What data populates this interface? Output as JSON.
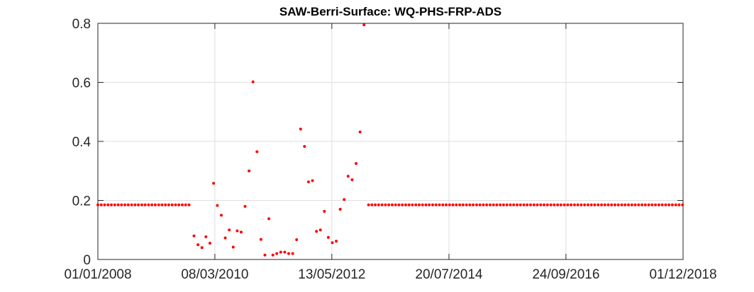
{
  "chart_data": {
    "type": "scatter",
    "title": "SAW-Berri-Surface: WQ-PHS-FRP-ADS",
    "xlabel": "",
    "ylabel": "",
    "xlim": [
      "2008-01-01",
      "2018-12-01"
    ],
    "ylim": [
      0,
      0.8
    ],
    "grid": true,
    "x_ticks": [
      "01/01/2008",
      "08/03/2010",
      "13/05/2012",
      "20/07/2014",
      "24/09/2016",
      "01/12/2018"
    ],
    "y_ticks": [
      "0",
      "0.2",
      "0.4",
      "0.6",
      "0.8"
    ],
    "marker_color": "#ff0000",
    "series": [
      {
        "points": [
          {
            "x": "2008-01-01",
            "y": 0.185
          },
          {
            "x": "2008-01-24",
            "y": 0.185
          },
          {
            "x": "2008-02-16",
            "y": 0.185
          },
          {
            "x": "2008-03-10",
            "y": 0.185
          },
          {
            "x": "2008-04-02",
            "y": 0.185
          },
          {
            "x": "2008-04-25",
            "y": 0.185
          },
          {
            "x": "2008-05-18",
            "y": 0.185
          },
          {
            "x": "2008-06-10",
            "y": 0.185
          },
          {
            "x": "2008-07-03",
            "y": 0.185
          },
          {
            "x": "2008-07-26",
            "y": 0.185
          },
          {
            "x": "2008-08-18",
            "y": 0.185
          },
          {
            "x": "2008-09-10",
            "y": 0.185
          },
          {
            "x": "2008-10-03",
            "y": 0.185
          },
          {
            "x": "2008-10-26",
            "y": 0.185
          },
          {
            "x": "2008-11-18",
            "y": 0.185
          },
          {
            "x": "2008-12-11",
            "y": 0.185
          },
          {
            "x": "2009-01-03",
            "y": 0.185
          },
          {
            "x": "2009-01-26",
            "y": 0.185
          },
          {
            "x": "2009-02-18",
            "y": 0.185
          },
          {
            "x": "2009-03-13",
            "y": 0.185
          },
          {
            "x": "2009-04-05",
            "y": 0.185
          },
          {
            "x": "2009-04-28",
            "y": 0.185
          },
          {
            "x": "2009-05-21",
            "y": 0.185
          },
          {
            "x": "2009-06-13",
            "y": 0.185
          },
          {
            "x": "2009-07-06",
            "y": 0.185
          },
          {
            "x": "2009-07-29",
            "y": 0.185
          },
          {
            "x": "2009-08-21",
            "y": 0.185
          },
          {
            "x": "2009-09-13",
            "y": 0.185
          },
          {
            "x": "2009-10-17",
            "y": 0.08
          },
          {
            "x": "2009-11-13",
            "y": 0.05
          },
          {
            "x": "2009-12-10",
            "y": 0.04
          },
          {
            "x": "2010-01-06",
            "y": 0.077
          },
          {
            "x": "2010-02-02",
            "y": 0.055
          },
          {
            "x": "2010-02-27",
            "y": 0.258
          },
          {
            "x": "2010-03-25",
            "y": 0.183
          },
          {
            "x": "2010-04-21",
            "y": 0.15
          },
          {
            "x": "2010-05-18",
            "y": 0.073
          },
          {
            "x": "2010-06-14",
            "y": 0.1
          },
          {
            "x": "2010-07-11",
            "y": 0.042
          },
          {
            "x": "2010-08-07",
            "y": 0.097
          },
          {
            "x": "2010-09-03",
            "y": 0.093
          },
          {
            "x": "2010-09-30",
            "y": 0.18
          },
          {
            "x": "2010-10-27",
            "y": 0.3
          },
          {
            "x": "2010-11-23",
            "y": 0.602
          },
          {
            "x": "2010-12-20",
            "y": 0.365
          },
          {
            "x": "2011-01-16",
            "y": 0.068
          },
          {
            "x": "2011-02-12",
            "y": 0.015
          },
          {
            "x": "2011-03-11",
            "y": 0.138
          },
          {
            "x": "2011-04-07",
            "y": 0.015
          },
          {
            "x": "2011-05-04",
            "y": 0.02
          },
          {
            "x": "2011-05-31",
            "y": 0.025
          },
          {
            "x": "2011-06-27",
            "y": 0.025
          },
          {
            "x": "2011-07-24",
            "y": 0.02
          },
          {
            "x": "2011-08-20",
            "y": 0.02
          },
          {
            "x": "2011-09-16",
            "y": 0.067
          },
          {
            "x": "2011-10-13",
            "y": 0.442
          },
          {
            "x": "2011-11-09",
            "y": 0.383
          },
          {
            "x": "2011-12-06",
            "y": 0.263
          },
          {
            "x": "2012-01-02",
            "y": 0.267
          },
          {
            "x": "2012-01-29",
            "y": 0.095
          },
          {
            "x": "2012-02-25",
            "y": 0.1
          },
          {
            "x": "2012-03-23",
            "y": 0.163
          },
          {
            "x": "2012-04-19",
            "y": 0.075
          },
          {
            "x": "2012-05-16",
            "y": 0.057
          },
          {
            "x": "2012-06-12",
            "y": 0.062
          },
          {
            "x": "2012-07-09",
            "y": 0.17
          },
          {
            "x": "2012-08-05",
            "y": 0.203
          },
          {
            "x": "2012-09-01",
            "y": 0.282
          },
          {
            "x": "2012-09-28",
            "y": 0.27
          },
          {
            "x": "2012-10-25",
            "y": 0.325
          },
          {
            "x": "2012-11-21",
            "y": 0.432
          },
          {
            "x": "2012-12-18",
            "y": 0.795
          },
          {
            "x": "2013-01-18",
            "y": 0.185
          },
          {
            "x": "2013-02-10",
            "y": 0.185
          },
          {
            "x": "2013-03-05",
            "y": 0.185
          },
          {
            "x": "2013-03-28",
            "y": 0.185
          },
          {
            "x": "2013-04-20",
            "y": 0.185
          },
          {
            "x": "2013-05-13",
            "y": 0.185
          },
          {
            "x": "2013-06-05",
            "y": 0.185
          },
          {
            "x": "2013-06-28",
            "y": 0.185
          },
          {
            "x": "2013-07-21",
            "y": 0.185
          },
          {
            "x": "2013-08-13",
            "y": 0.185
          },
          {
            "x": "2013-09-05",
            "y": 0.185
          },
          {
            "x": "2013-09-28",
            "y": 0.185
          },
          {
            "x": "2013-10-21",
            "y": 0.185
          },
          {
            "x": "2013-11-13",
            "y": 0.185
          },
          {
            "x": "2013-12-06",
            "y": 0.185
          },
          {
            "x": "2013-12-29",
            "y": 0.185
          },
          {
            "x": "2014-01-21",
            "y": 0.185
          },
          {
            "x": "2014-02-13",
            "y": 0.185
          },
          {
            "x": "2014-03-08",
            "y": 0.185
          },
          {
            "x": "2014-03-31",
            "y": 0.185
          },
          {
            "x": "2014-04-23",
            "y": 0.185
          },
          {
            "x": "2014-05-16",
            "y": 0.185
          },
          {
            "x": "2014-06-08",
            "y": 0.185
          },
          {
            "x": "2014-07-01",
            "y": 0.185
          },
          {
            "x": "2014-07-24",
            "y": 0.185
          },
          {
            "x": "2014-08-16",
            "y": 0.185
          },
          {
            "x": "2014-09-08",
            "y": 0.185
          },
          {
            "x": "2014-10-01",
            "y": 0.185
          },
          {
            "x": "2014-10-24",
            "y": 0.185
          },
          {
            "x": "2014-11-16",
            "y": 0.185
          },
          {
            "x": "2014-12-09",
            "y": 0.185
          },
          {
            "x": "2015-01-01",
            "y": 0.185
          },
          {
            "x": "2015-01-24",
            "y": 0.185
          },
          {
            "x": "2015-02-16",
            "y": 0.185
          },
          {
            "x": "2015-03-11",
            "y": 0.185
          },
          {
            "x": "2015-04-03",
            "y": 0.185
          },
          {
            "x": "2015-04-26",
            "y": 0.185
          },
          {
            "x": "2015-05-19",
            "y": 0.185
          },
          {
            "x": "2015-06-11",
            "y": 0.185
          },
          {
            "x": "2015-07-04",
            "y": 0.185
          },
          {
            "x": "2015-07-27",
            "y": 0.185
          },
          {
            "x": "2015-08-19",
            "y": 0.185
          },
          {
            "x": "2015-09-11",
            "y": 0.185
          },
          {
            "x": "2015-10-04",
            "y": 0.185
          },
          {
            "x": "2015-10-27",
            "y": 0.185
          },
          {
            "x": "2015-11-19",
            "y": 0.185
          },
          {
            "x": "2015-12-12",
            "y": 0.185
          },
          {
            "x": "2016-01-04",
            "y": 0.185
          },
          {
            "x": "2016-01-27",
            "y": 0.185
          },
          {
            "x": "2016-02-19",
            "y": 0.185
          },
          {
            "x": "2016-03-13",
            "y": 0.185
          },
          {
            "x": "2016-04-05",
            "y": 0.185
          },
          {
            "x": "2016-04-28",
            "y": 0.185
          },
          {
            "x": "2016-05-21",
            "y": 0.185
          },
          {
            "x": "2016-06-13",
            "y": 0.185
          },
          {
            "x": "2016-07-06",
            "y": 0.185
          },
          {
            "x": "2016-07-29",
            "y": 0.185
          },
          {
            "x": "2016-08-21",
            "y": 0.185
          },
          {
            "x": "2016-09-13",
            "y": 0.185
          },
          {
            "x": "2016-10-06",
            "y": 0.185
          },
          {
            "x": "2016-10-29",
            "y": 0.185
          },
          {
            "x": "2016-11-21",
            "y": 0.185
          },
          {
            "x": "2016-12-14",
            "y": 0.185
          },
          {
            "x": "2017-01-06",
            "y": 0.185
          },
          {
            "x": "2017-01-29",
            "y": 0.185
          },
          {
            "x": "2017-02-21",
            "y": 0.185
          },
          {
            "x": "2017-03-16",
            "y": 0.185
          },
          {
            "x": "2017-04-08",
            "y": 0.185
          },
          {
            "x": "2017-05-01",
            "y": 0.185
          },
          {
            "x": "2017-05-24",
            "y": 0.185
          },
          {
            "x": "2017-06-16",
            "y": 0.185
          },
          {
            "x": "2017-07-09",
            "y": 0.185
          },
          {
            "x": "2017-08-01",
            "y": 0.185
          },
          {
            "x": "2017-08-24",
            "y": 0.185
          },
          {
            "x": "2017-09-16",
            "y": 0.185
          },
          {
            "x": "2017-10-09",
            "y": 0.185
          },
          {
            "x": "2017-11-01",
            "y": 0.185
          },
          {
            "x": "2017-11-24",
            "y": 0.185
          },
          {
            "x": "2017-12-17",
            "y": 0.185
          },
          {
            "x": "2018-01-09",
            "y": 0.185
          },
          {
            "x": "2018-02-01",
            "y": 0.185
          },
          {
            "x": "2018-02-24",
            "y": 0.185
          },
          {
            "x": "2018-03-19",
            "y": 0.185
          },
          {
            "x": "2018-04-11",
            "y": 0.185
          },
          {
            "x": "2018-05-04",
            "y": 0.185
          },
          {
            "x": "2018-05-27",
            "y": 0.185
          },
          {
            "x": "2018-06-19",
            "y": 0.185
          },
          {
            "x": "2018-07-12",
            "y": 0.185
          },
          {
            "x": "2018-08-04",
            "y": 0.185
          },
          {
            "x": "2018-08-27",
            "y": 0.185
          },
          {
            "x": "2018-09-19",
            "y": 0.185
          },
          {
            "x": "2018-10-12",
            "y": 0.185
          },
          {
            "x": "2018-11-04",
            "y": 0.185
          },
          {
            "x": "2018-11-27",
            "y": 0.185
          }
        ]
      }
    ]
  }
}
